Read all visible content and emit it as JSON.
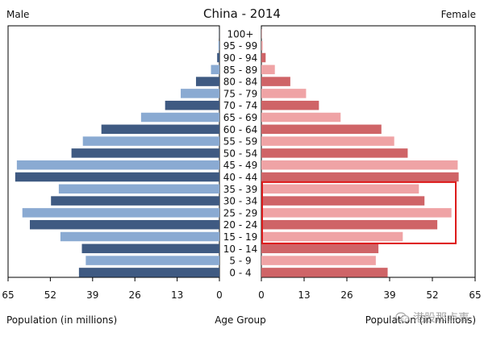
{
  "chart_data": {
    "type": "bar",
    "orientation": "horizontal-population-pyramid",
    "title": "China - 2014",
    "left_label": "Male",
    "right_label": "Female",
    "xlabel_left": "Population (in millions)",
    "xlabel_center": "Age Group",
    "xlabel_right": "Population (in millions)",
    "xlim": [
      0,
      65
    ],
    "x_ticks": [
      65,
      52,
      39,
      26,
      13,
      0
    ],
    "x_ticks_right": [
      0,
      13,
      26,
      39,
      52,
      65
    ],
    "grid": false,
    "categories": [
      "100+",
      "95 - 99",
      "90 - 94",
      "85 - 89",
      "80 - 84",
      "75 - 79",
      "70 - 74",
      "65 - 69",
      "60 - 64",
      "55 - 59",
      "50 - 54",
      "45 - 49",
      "40 - 44",
      "35 - 39",
      "30 - 34",
      "25 - 29",
      "20 - 24",
      "15 - 19",
      "10 - 14",
      "5 - 9",
      "0 - 4"
    ],
    "series": [
      {
        "name": "Male",
        "values": [
          0.05,
          0.3,
          0.7,
          2.6,
          7.2,
          11.9,
          16.7,
          24.1,
          36.3,
          42.0,
          45.5,
          62.3,
          62.8,
          49.4,
          51.8,
          60.6,
          58.3,
          48.9,
          42.3,
          41.1,
          43.2
        ]
      },
      {
        "name": "Female",
        "values": [
          0.1,
          0.4,
          1.3,
          4.1,
          8.8,
          13.6,
          17.5,
          24.1,
          36.5,
          40.4,
          44.5,
          59.7,
          60.0,
          47.9,
          49.6,
          57.8,
          53.5,
          43.0,
          35.6,
          34.8,
          38.4
        ]
      }
    ],
    "colors": {
      "male_dark": "#3f5a82",
      "male_light": "#8aaad2",
      "female_dark": "#cf6467",
      "female_light": "#efa3a5",
      "highlight_box": "#dd1a1a"
    },
    "highlight": {
      "from": "35 - 39",
      "to": "15 - 19",
      "side": "Female"
    }
  },
  "watermark": {
    "text": "港股那点事",
    "icon": "wechat-icon"
  }
}
